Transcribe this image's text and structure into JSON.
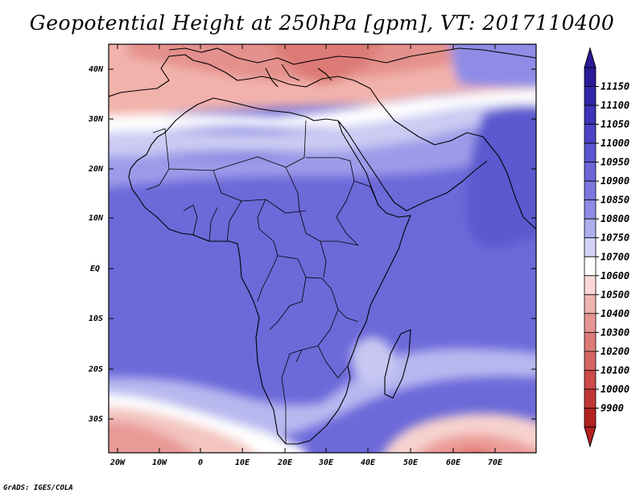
{
  "title": "Geopotential Height at 250hPa [gpm], VT: 2017110400",
  "credit": "GrADS: IGES/COLA",
  "map": {
    "lat_labels": [
      "40N",
      "30N",
      "20N",
      "10N",
      "EQ",
      "10S",
      "20S",
      "30S"
    ],
    "lon_labels": [
      "20W",
      "10W",
      "0",
      "10E",
      "20E",
      "30E",
      "40E",
      "50E",
      "60E",
      "70E"
    ]
  },
  "colorbar": {
    "levels": [
      "11150",
      "11100",
      "11050",
      "11000",
      "10950",
      "10900",
      "10850",
      "10800",
      "10750",
      "10700",
      "10600",
      "10500",
      "10400",
      "10300",
      "10200",
      "10100",
      "10000",
      "9900"
    ],
    "colors": [
      "#2a1a96",
      "#3226a8",
      "#3c32b8",
      "#4b44c6",
      "#5a55d0",
      "#6a66d8",
      "#7a77de",
      "#8e8ce6",
      "#aeaeee",
      "#d2d3f5",
      "#ffffff",
      "#f8d8d6",
      "#f0b4b0",
      "#e69592",
      "#dc7a78",
      "#d46562",
      "#cc4a48",
      "#c23636",
      "#b22020"
    ]
  }
}
